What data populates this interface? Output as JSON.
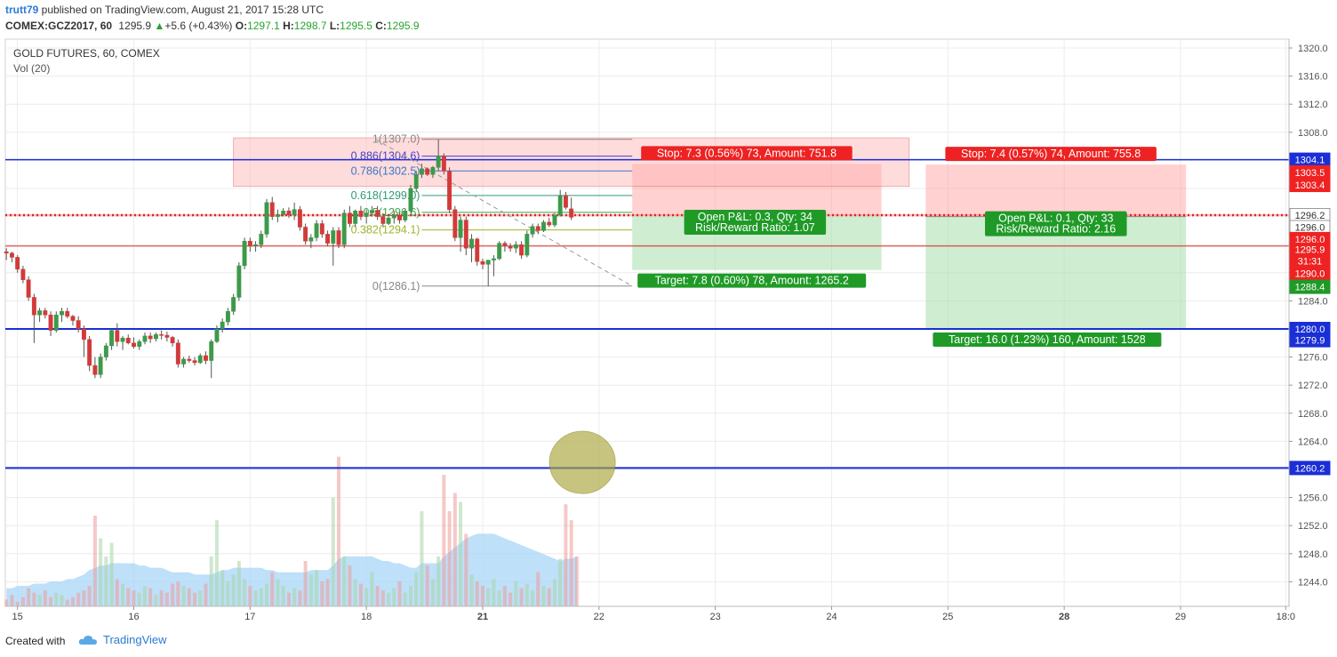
{
  "header": {
    "author": "trutt79",
    "published_text": " published on TradingView.com, August 21, 2017 15:28 UTC",
    "symbol": "COMEX:GCZ2017, 60",
    "last": "1295.9",
    "change": "+5.6 (+0.43%)",
    "o_label": "O:",
    "o_value": "1297.1",
    "h_label": "H:",
    "h_value": "1298.7",
    "l_label": "L:",
    "l_value": "1295.5",
    "c_label": "C:",
    "c_value": "1295.9"
  },
  "footer": {
    "created_with": "Created with",
    "brand": "TradingView"
  },
  "colors": {
    "up": "#3c9a4a",
    "down": "#d23a3a",
    "blue_line": "#1a2fd6",
    "red_line": "#e02424",
    "green_label": "#1f9a27",
    "red_label": "#ee2222"
  },
  "chart_data": {
    "type": "candlestick",
    "title": "GOLD FUTURES, 60, COMEX",
    "indicator": "Vol (20)",
    "ylim": [
      1241.5,
      1322
    ],
    "y_ticks": [
      "1244.0",
      "1248.0",
      "1252.0",
      "1256.0",
      "1260.0",
      "1264.0",
      "1268.0",
      "1272.0",
      "1276.0",
      "1280.0",
      "1284.0",
      "1288.0",
      "1292.0",
      "1296.0",
      "1300.0",
      "1304.0",
      "1308.0",
      "1312.0",
      "1316.0",
      "1320.0"
    ],
    "x_ticks": [
      {
        "label": "15",
        "idx": 2
      },
      {
        "label": "16",
        "idx": 23
      },
      {
        "label": "17",
        "idx": 44
      },
      {
        "label": "18",
        "idx": 65
      },
      {
        "label": "21",
        "idx": 86,
        "bold": true
      },
      {
        "label": "22",
        "idx": 107
      },
      {
        "label": "23",
        "idx": 128
      },
      {
        "label": "24",
        "idx": 149
      },
      {
        "label": "25",
        "idx": 170
      },
      {
        "label": "28",
        "idx": 191,
        "bold": true
      },
      {
        "label": "29",
        "idx": 212
      },
      {
        "label": "18:0",
        "idx": 231
      }
    ],
    "candles": [
      [
        1291.0,
        1291.5,
        1289.8,
        1290.8
      ],
      [
        1290.8,
        1291.0,
        1289.5,
        1290.2
      ],
      [
        1290.2,
        1290.5,
        1288.0,
        1288.5
      ],
      [
        1288.5,
        1289.0,
        1286.5,
        1287.0
      ],
      [
        1287.0,
        1287.5,
        1284.0,
        1284.5
      ],
      [
        1284.5,
        1285.0,
        1278.0,
        1282.0
      ],
      [
        1282.0,
        1283.0,
        1281.0,
        1282.6
      ],
      [
        1282.6,
        1283.0,
        1281.5,
        1282.0
      ],
      [
        1282.0,
        1282.5,
        1279.0,
        1279.8
      ],
      [
        1279.8,
        1282.5,
        1279.5,
        1282.0
      ],
      [
        1282.0,
        1283.0,
        1281.0,
        1282.5
      ],
      [
        1282.5,
        1283.0,
        1281.5,
        1281.8
      ],
      [
        1281.8,
        1282.0,
        1280.5,
        1281.2
      ],
      [
        1281.2,
        1281.8,
        1279.5,
        1280.0
      ],
      [
        1280.0,
        1280.5,
        1276.0,
        1278.5
      ],
      [
        1278.5,
        1279.0,
        1274.0,
        1274.8
      ],
      [
        1274.8,
        1276.0,
        1273.0,
        1273.5
      ],
      [
        1273.5,
        1276.5,
        1273.0,
        1276.0
      ],
      [
        1276.0,
        1278.0,
        1275.5,
        1277.6
      ],
      [
        1277.6,
        1280.0,
        1277.0,
        1279.8
      ],
      [
        1279.8,
        1280.8,
        1277.5,
        1278.2
      ],
      [
        1278.2,
        1279.0,
        1277.0,
        1278.7
      ],
      [
        1278.7,
        1279.2,
        1277.8,
        1278.0
      ],
      [
        1278.0,
        1278.8,
        1277.2,
        1277.5
      ],
      [
        1277.5,
        1278.5,
        1277.0,
        1278.2
      ],
      [
        1278.2,
        1279.5,
        1277.8,
        1279.0
      ],
      [
        1279.0,
        1279.5,
        1278.0,
        1278.6
      ],
      [
        1278.6,
        1279.5,
        1278.2,
        1279.2
      ],
      [
        1279.2,
        1279.8,
        1278.5,
        1279.1
      ],
      [
        1279.1,
        1279.6,
        1278.2,
        1278.8
      ],
      [
        1278.8,
        1279.0,
        1277.5,
        1278.0
      ],
      [
        1278.0,
        1278.5,
        1274.5,
        1275.0
      ],
      [
        1275.0,
        1276.0,
        1274.5,
        1275.7
      ],
      [
        1275.7,
        1276.2,
        1275.2,
        1275.5
      ],
      [
        1275.5,
        1276.0,
        1274.8,
        1275.2
      ],
      [
        1275.2,
        1276.5,
        1275.0,
        1276.2
      ],
      [
        1276.2,
        1276.8,
        1275.0,
        1275.5
      ],
      [
        1275.5,
        1278.5,
        1273.0,
        1278.2
      ],
      [
        1278.2,
        1280.5,
        1278.0,
        1280.0
      ],
      [
        1280.0,
        1281.5,
        1279.5,
        1281.0
      ],
      [
        1281.0,
        1283.0,
        1280.5,
        1282.5
      ],
      [
        1282.5,
        1285.0,
        1282.0,
        1284.5
      ],
      [
        1284.5,
        1289.5,
        1284.0,
        1289.0
      ],
      [
        1289.0,
        1293.0,
        1288.5,
        1292.5
      ],
      [
        1292.5,
        1293.0,
        1291.0,
        1291.8
      ],
      [
        1291.8,
        1292.5,
        1291.0,
        1292.0
      ],
      [
        1292.0,
        1294.0,
        1291.5,
        1293.5
      ],
      [
        1293.5,
        1298.5,
        1293.0,
        1298.0
      ],
      [
        1298.0,
        1298.8,
        1295.5,
        1296.0
      ],
      [
        1296.0,
        1297.0,
        1295.2,
        1296.3
      ],
      [
        1296.3,
        1297.2,
        1296.0,
        1296.8
      ],
      [
        1296.8,
        1297.3,
        1295.8,
        1296.2
      ],
      [
        1296.2,
        1298.0,
        1295.5,
        1297.0
      ],
      [
        1297.0,
        1297.5,
        1294.0,
        1294.5
      ],
      [
        1294.5,
        1295.0,
        1292.0,
        1292.5
      ],
      [
        1292.5,
        1293.5,
        1291.5,
        1293.0
      ],
      [
        1293.0,
        1295.5,
        1292.5,
        1295.0
      ],
      [
        1295.0,
        1295.5,
        1293.0,
        1293.5
      ],
      [
        1293.5,
        1294.0,
        1291.8,
        1292.2
      ],
      [
        1292.2,
        1294.5,
        1289.0,
        1294.0
      ],
      [
        1294.0,
        1294.5,
        1291.5,
        1292.0
      ],
      [
        1292.0,
        1297.0,
        1291.5,
        1296.5
      ],
      [
        1296.5,
        1297.5,
        1294.5,
        1295.0
      ],
      [
        1295.0,
        1297.0,
        1294.5,
        1296.8
      ],
      [
        1296.8,
        1297.5,
        1295.5,
        1296.0
      ],
      [
        1296.0,
        1297.0,
        1295.0,
        1296.5
      ],
      [
        1296.5,
        1297.5,
        1296.0,
        1296.9
      ],
      [
        1296.9,
        1297.5,
        1295.5,
        1296.0
      ],
      [
        1296.0,
        1296.5,
        1294.5,
        1295.0
      ],
      [
        1295.0,
        1296.0,
        1294.8,
        1295.8
      ],
      [
        1295.8,
        1296.8,
        1295.0,
        1296.2
      ],
      [
        1296.2,
        1296.5,
        1295.0,
        1295.5
      ],
      [
        1295.5,
        1297.0,
        1295.2,
        1296.8
      ],
      [
        1296.8,
        1300.5,
        1296.5,
        1300.0
      ],
      [
        1300.0,
        1302.5,
        1299.5,
        1302.0
      ],
      [
        1302.0,
        1303.5,
        1301.5,
        1302.8
      ],
      [
        1302.8,
        1303.0,
        1301.8,
        1302.0
      ],
      [
        1302.0,
        1303.2,
        1301.5,
        1303.0
      ],
      [
        1303.0,
        1307.0,
        1302.5,
        1304.6
      ],
      [
        1304.6,
        1305.0,
        1302.0,
        1302.5
      ],
      [
        1302.5,
        1303.0,
        1296.5,
        1297.0
      ],
      [
        1297.0,
        1297.5,
        1292.5,
        1293.0
      ],
      [
        1293.0,
        1296.0,
        1291.0,
        1295.5
      ],
      [
        1295.5,
        1296.0,
        1290.5,
        1291.5
      ],
      [
        1291.5,
        1293.5,
        1289.5,
        1292.8
      ],
      [
        1292.8,
        1293.0,
        1289.0,
        1289.6
      ],
      [
        1289.6,
        1290.0,
        1288.5,
        1289.2
      ],
      [
        1289.2,
        1289.8,
        1286.1,
        1289.8
      ],
      [
        1289.8,
        1290.5,
        1287.5,
        1290.0
      ],
      [
        1290.0,
        1292.5,
        1289.8,
        1292.2
      ],
      [
        1292.2,
        1292.5,
        1291.0,
        1291.8
      ],
      [
        1291.8,
        1292.2,
        1291.0,
        1291.5
      ],
      [
        1291.5,
        1292.5,
        1290.8,
        1292.0
      ],
      [
        1292.0,
        1292.5,
        1290.0,
        1290.5
      ],
      [
        1290.5,
        1294.0,
        1290.2,
        1293.5
      ],
      [
        1293.5,
        1295.0,
        1293.0,
        1294.6
      ],
      [
        1294.6,
        1295.0,
        1293.5,
        1294.0
      ],
      [
        1294.0,
        1295.5,
        1293.8,
        1295.2
      ],
      [
        1295.2,
        1295.8,
        1294.5,
        1294.8
      ],
      [
        1294.8,
        1296.5,
        1294.5,
        1296.2
      ],
      [
        1296.2,
        1299.8,
        1296.0,
        1299.0
      ],
      [
        1299.0,
        1299.5,
        1297.0,
        1297.3
      ],
      [
        1297.1,
        1298.7,
        1295.5,
        1295.9
      ]
    ],
    "volume": [
      3,
      5,
      2,
      4,
      8,
      6,
      5,
      7,
      4,
      6,
      5,
      3,
      4,
      6,
      7,
      9,
      40,
      30,
      22,
      28,
      12,
      10,
      8,
      7,
      6,
      9,
      8,
      5,
      7,
      6,
      10,
      11,
      9,
      8,
      6,
      7,
      10,
      22,
      38,
      16,
      11,
      14,
      20,
      12,
      9,
      7,
      8,
      10,
      15,
      12,
      9,
      6,
      8,
      7,
      20,
      14,
      16,
      11,
      12,
      48,
      66,
      22,
      18,
      12,
      10,
      8,
      15,
      9,
      7,
      6,
      8,
      11,
      6,
      9,
      15,
      42,
      18,
      12,
      22,
      58,
      42,
      50,
      46,
      32,
      14,
      11,
      9,
      8,
      12,
      7,
      9,
      6,
      11,
      8,
      10,
      7,
      15,
      9,
      8,
      12,
      21,
      45,
      38,
      22
    ],
    "volume_ma": [
      8,
      8,
      9,
      9,
      9,
      10,
      10,
      10,
      11,
      11,
      11,
      12,
      12,
      13,
      14,
      16,
      17,
      18,
      18,
      19,
      19,
      19,
      19,
      19,
      18,
      18,
      17,
      17,
      17,
      16,
      15,
      15,
      15,
      15,
      14,
      14,
      14,
      14,
      15,
      16,
      16,
      17,
      17,
      17,
      17,
      17,
      17,
      16,
      16,
      15,
      15,
      15,
      15,
      15,
      15,
      16,
      16,
      16,
      16,
      18,
      21,
      22,
      22,
      22,
      22,
      22,
      22,
      21,
      20,
      20,
      19,
      19,
      18,
      17,
      17,
      19,
      19,
      19,
      19,
      22,
      24,
      26,
      28,
      30,
      31,
      32,
      32,
      32,
      32,
      31,
      30,
      29,
      28,
      27,
      26,
      25,
      24,
      23,
      22,
      21,
      20,
      21,
      21,
      22
    ],
    "horizontal_lines": [
      {
        "price": 1304.1,
        "color": "#1a2fd6",
        "width": 1.5
      },
      {
        "price": 1296.2,
        "color": "#e02424",
        "width": 2.5,
        "dash": "2,3"
      },
      {
        "price": 1291.8,
        "color": "#e02424",
        "width": 1
      },
      {
        "price": 1280.0,
        "color": "#1a2fd6",
        "width": 2
      },
      {
        "price": 1260.2,
        "color": "#1a2fd6",
        "width": 2
      }
    ],
    "price_labels": [
      {
        "text": "1304.1",
        "price": 1304.1,
        "bg": "#1a2fd6"
      },
      {
        "text": "1303.5",
        "price": 1302.3,
        "bg": "#ee2222"
      },
      {
        "text": "1303.4",
        "price": 1300.5,
        "bg": "#ee2222"
      },
      {
        "text": "1296.2",
        "price": 1296.2,
        "bg": "#ffffff",
        "fg": "#333",
        "border": "#999"
      },
      {
        "text": "1296.0",
        "price": 1294.5,
        "bg": "#ffffff",
        "fg": "#333",
        "border": "#999"
      },
      {
        "text": "1296.0",
        "price": 1292.8,
        "bg": "#ee2222"
      },
      {
        "text": "1295.9",
        "price": 1291.3,
        "bg": "#ee2222"
      },
      {
        "text": "31:31",
        "price": 1289.7,
        "bg": "#ee2222"
      },
      {
        "text": "1290.0",
        "price": 1287.9,
        "bg": "#ee2222"
      },
      {
        "text": "1288.4",
        "price": 1286.0,
        "bg": "#1f9a27"
      },
      {
        "text": "1280.0",
        "price": 1280.0,
        "bg": "#1a2fd6"
      },
      {
        "text": "1279.9",
        "price": 1278.4,
        "bg": "#1a2fd6"
      },
      {
        "text": "1260.2",
        "price": 1260.2,
        "bg": "#1a2fd6"
      }
    ],
    "fib_levels": [
      {
        "label": "1(1307.0)",
        "price": 1307.0,
        "color": "#888888"
      },
      {
        "label": "0.886(1304.6)",
        "price": 1304.6,
        "color": "#4b3fc9"
      },
      {
        "label": "0.786(1302.5)",
        "price": 1302.5,
        "color": "#3a78c9"
      },
      {
        "label": "0.618(1299.0)",
        "price": 1299.0,
        "color": "#2e9a7a"
      },
      {
        "label": "0.5(1296.6)",
        "price": 1296.6,
        "color": "#3ca34a"
      },
      {
        "label": "0.382(1294.1)",
        "price": 1294.1,
        "color": "#9ab62c"
      },
      {
        "label": "0(1286.1)",
        "price": 1286.1,
        "color": "#888888"
      }
    ],
    "fib_range": {
      "from_idx": 75,
      "to_idx": 113
    },
    "trend_line": {
      "idx1": 75,
      "price1": 1307.0,
      "idx2": 113,
      "price2": 1286.1
    },
    "red_box": {
      "idx1": 41,
      "idx2": 163,
      "price_top": 1307.2,
      "price_bottom": 1300.3
    },
    "positions": [
      {
        "idx1": 113,
        "idx2": 158,
        "entry": 1296.2,
        "stop": 1303.5,
        "target": 1288.4,
        "stop_label": "Stop: 7.3 (0.56%) 73, Amount: 751.8",
        "pl_label": "Open P&L: 0.3, Qty: 34",
        "rr_label": "Risk/Reward Ratio: 1.07",
        "target_label": "Target: 7.8 (0.60%) 78, Amount: 1265.2"
      },
      {
        "idx1": 166,
        "idx2": 213,
        "entry": 1296.0,
        "stop": 1303.4,
        "target": 1280.0,
        "stop_label": "Stop: 7.4 (0.57%) 74, Amount: 755.8",
        "pl_label": "Open P&L: 0.1, Qty: 33",
        "rr_label": "Risk/Reward Ratio: 2.16",
        "target_label": "Target: 16.0 (1.23%) 160, Amount: 1528"
      }
    ],
    "ellipse": {
      "idx": 104,
      "price": 1261.0,
      "color": "#a9a63a"
    }
  }
}
